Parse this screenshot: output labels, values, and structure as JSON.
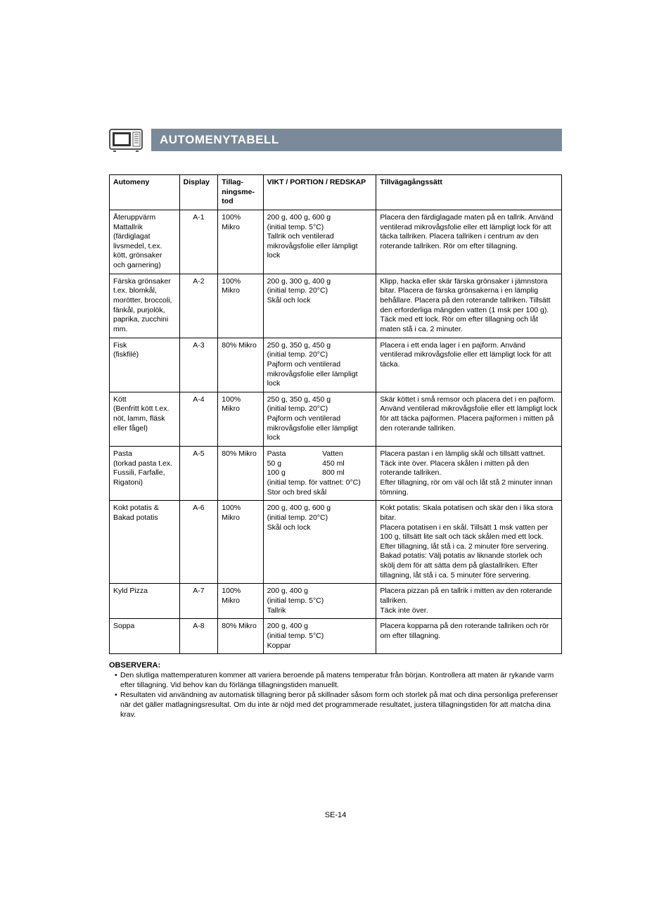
{
  "title": "AUTOMENYTABELL",
  "colors": {
    "titlebar_bg": "#7a8a9a",
    "titlebar_fg": "#ffffff",
    "border": "#000000",
    "icon_stroke": "#555555"
  },
  "table": {
    "headers": {
      "automeny": "Automeny",
      "display": "Display",
      "method": "Tillag-ningsme-tod",
      "weight": "VIKT / PORTION / REDSKAP",
      "procedure": "Tillvägagångssätt"
    },
    "rows": [
      {
        "automeny": "Återuppvärm Mattallrik (färdiglagat livsmedel, t.ex. kött, grönsaker och garnering)",
        "display": "A-1",
        "method": "100% Mikro",
        "weight": "200 g, 400 g, 600 g\n(initial temp. 5°C)\nTallrik och ventilerad mikrovågsfolie eller lämpligt lock",
        "procedure": "Placera den färdiglagade maten på en tallrik. Använd ventilerad mikrovågsfolie eller ett lämpligt lock för att täcka tallriken. Placera tallriken i centrum av den roterande tallriken. Rör om efter tillagning."
      },
      {
        "automeny": "Färska grönsaker t.ex. blomkål, morötter, broccoli, fänkål, purjolök, paprika, zucchini mm.",
        "display": "A-2",
        "method": "100% Mikro",
        "weight": "200 g, 300 g, 400 g\n(initial temp. 20°C)\nSkål och lock",
        "procedure": "Klipp, hacka eller skär färska grönsaker i jämnstora bitar. Placera de färska grönsakerna i en lämplig behållare. Placera på den roterande tallriken. Tillsätt den erforderliga mängden vatten (1 msk per 100 g). Täck med ett lock. Rör om efter tillagning och låt maten stå i ca. 2 minuter."
      },
      {
        "automeny": "Fisk\n(fiskfilé)",
        "display": "A-3",
        "method": "80% Mikro",
        "weight": "250 g, 350 g, 450 g\n(initial temp. 20°C)\nPajform och ventilerad mikrovågsfolie eller lämpligt lock",
        "procedure": "Placera i ett enda lager i en pajform. Använd ventilerad mikrovågsfolie eller ett lämpligt lock för att täcka."
      },
      {
        "automeny": "Kött\n(Benfritt kött t.ex. nöt, lamm, fläsk eller fågel)",
        "display": "A-4",
        "method": "100% Mikro",
        "weight": "250 g, 350 g, 450 g\n(initial temp. 20°C)\nPajform och ventilerad mikrovågsfolie eller lämpligt lock",
        "procedure": "Skär köttet i små remsor och placera det i en pajform. Använd ventilerad mikrovågsfolie eller ett lämpligt lock för att täcka pajformen. Placera pajformen i mitten på den roterande tallriken."
      },
      {
        "automeny": "Pasta\n(torkad pasta t.ex. Fussili, Farfalle, Rigatoni)",
        "display": "A-5",
        "method": "80% Mikro",
        "weight_pasta": {
          "h1": "Pasta",
          "h2": "Vatten",
          "r1a": "50 g",
          "r1b": "450 ml",
          "r2a": "100 g",
          "r2b": "800 ml",
          "tail": "(initial temp. för vattnet: 0°C)\nStor och bred skål"
        },
        "procedure": "Placera pastan i en lämplig skål och tillsätt vattnet. Täck inte över. Placera skålen i mitten på den roterande tallriken.\nEfter tillagning, rör om väl och låt stå 2 minuter innan tömning."
      },
      {
        "automeny": "Kokt potatis & Bakad potatis",
        "display": "A-6",
        "method": "100% Mikro",
        "weight": "200 g, 400 g, 600 g\n(initial temp. 20°C)\nSkål och lock",
        "procedure": "Kokt potatis: Skala potatisen och skär den i lika stora bitar.\nPlacera potatisen i en skål. Tillsätt 1 msk vatten per 100 g, tillsätt lite salt och täck skålen med ett lock. Efter tillagning, låt stå i ca. 2 minuter före servering. Bakad potatis: Välj potatis av liknande storlek och skölj dem för att sätta dem på glastallriken. Efter tillagning, låt stå i ca. 5 minuter före servering."
      },
      {
        "automeny": "Kyld Pizza",
        "display": "A-7",
        "method": "100% Mikro",
        "weight": "200 g, 400 g\n(initial temp. 5°C)\nTallrik",
        "procedure": "Placera pizzan på en tallrik i mitten av den roterande tallriken.\nTäck inte över."
      },
      {
        "automeny": "Soppa",
        "display": "A-8",
        "method": "80% Mikro",
        "weight": "200 g, 400 g\n(initial temp. 5°C)\nKoppar",
        "procedure": "Placera kopparna på den roterande tallriken och rör om efter tillagning."
      }
    ]
  },
  "observera": {
    "title": "OBSERVERA:",
    "items": [
      "Den slutliga mattemperaturen kommer att variera beroende på matens temperatur från början. Kontrollera att maten är rykande varm efter tillagning. Vid behov kan du förlänga tillagningstiden manuellt.",
      "Resultaten vid användning av automatisk tillagning beror på skillnader såsom form och storlek på mat och dina personliga preferenser när det gäller matlagningsresultat. Om du inte är nöjd med det programmerade resultatet, justera tillagningstiden för att matcha dina krav."
    ]
  },
  "footer": "SE-14"
}
